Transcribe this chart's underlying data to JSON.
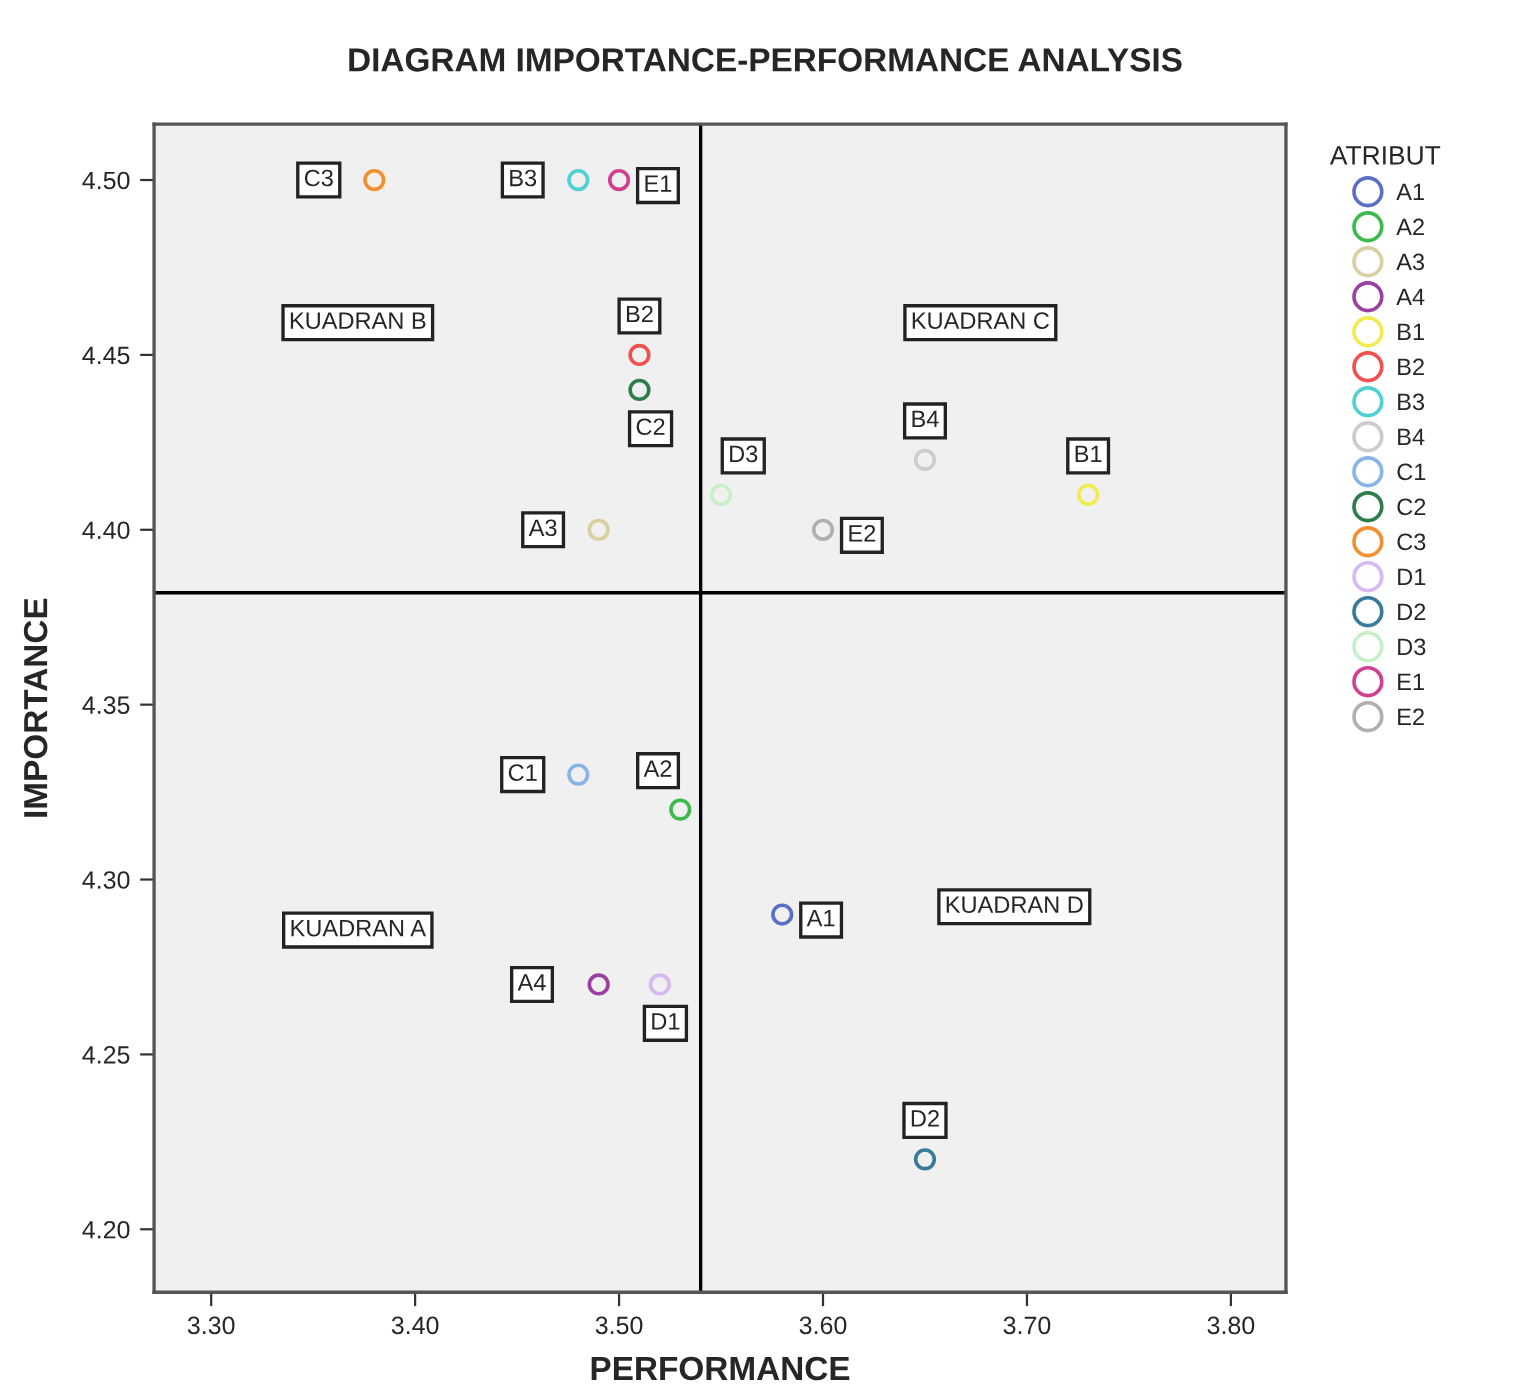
{
  "chart_data": {
    "type": "scatter",
    "title": "DIAGRAM IMPORTANCE-PERFORMANCE ANALYSIS",
    "xlabel": "PERFORMANCE",
    "ylabel": "IMPORTANCE",
    "legend_title": "ATRIBUT",
    "legend": "right",
    "marker": "circle",
    "grid": false,
    "xlim": [
      3.272,
      3.827
    ],
    "xticks": [
      {
        "value": 3.3,
        "label": "3.30"
      },
      {
        "value": 3.4,
        "label": "3.40"
      },
      {
        "value": 3.5,
        "label": "3.50"
      },
      {
        "value": 3.6,
        "label": "3.60"
      },
      {
        "value": 3.7,
        "label": "3.70"
      },
      {
        "value": 3.8,
        "label": "3.80"
      }
    ],
    "ylim": [
      4.182,
      4.516
    ],
    "yticks": [
      {
        "value": 4.2,
        "label": "4.20"
      },
      {
        "value": 4.25,
        "label": "4.25"
      },
      {
        "value": 4.3,
        "label": "4.30"
      },
      {
        "value": 4.35,
        "label": "4.35"
      },
      {
        "value": 4.4,
        "label": "4.40"
      },
      {
        "value": 4.45,
        "label": "4.45"
      },
      {
        "value": 4.5,
        "label": "4.50"
      }
    ],
    "ref_lines": [
      {
        "axis": "x",
        "value": 3.54,
        "color": "#000000"
      },
      {
        "axis": "y",
        "value": 4.382,
        "color": "#000000"
      }
    ],
    "series": [
      {
        "name": "A1",
        "color": "#5b6fc4",
        "x": [
          3.58
        ],
        "values": [
          4.29
        ]
      },
      {
        "name": "A2",
        "color": "#3cba4c",
        "x": [
          3.53
        ],
        "values": [
          4.32
        ]
      },
      {
        "name": "A3",
        "color": "#d8d0a0",
        "x": [
          3.49
        ],
        "values": [
          4.4
        ]
      },
      {
        "name": "A4",
        "color": "#9b3fa0",
        "x": [
          3.49
        ],
        "values": [
          4.27
        ]
      },
      {
        "name": "B1",
        "color": "#f0ec50",
        "x": [
          3.73
        ],
        "values": [
          4.41
        ]
      },
      {
        "name": "B2",
        "color": "#f05050",
        "x": [
          3.51
        ],
        "values": [
          4.45
        ]
      },
      {
        "name": "B3",
        "color": "#50d0d0",
        "x": [
          3.48
        ],
        "values": [
          4.5
        ]
      },
      {
        "name": "B4",
        "color": "#cccccc",
        "x": [
          3.65
        ],
        "values": [
          4.42
        ]
      },
      {
        "name": "C1",
        "color": "#88b4e8",
        "x": [
          3.48
        ],
        "values": [
          4.33
        ]
      },
      {
        "name": "C2",
        "color": "#2e7d4a",
        "x": [
          3.51
        ],
        "values": [
          4.44
        ]
      },
      {
        "name": "C3",
        "color": "#f09030",
        "x": [
          3.38
        ],
        "values": [
          4.5
        ]
      },
      {
        "name": "D1",
        "color": "#d8b8f0",
        "x": [
          3.52
        ],
        "values": [
          4.27
        ]
      },
      {
        "name": "D2",
        "color": "#3a7a99",
        "x": [
          3.65
        ],
        "values": [
          4.22
        ]
      },
      {
        "name": "D3",
        "color": "#c8f0c8",
        "x": [
          3.55
        ],
        "values": [
          4.41
        ]
      },
      {
        "name": "E1",
        "color": "#d04090",
        "x": [
          3.5
        ],
        "values": [
          4.5
        ]
      },
      {
        "name": "E2",
        "color": "#b0b0b0",
        "x": [
          3.6
        ],
        "values": [
          4.4
        ]
      }
    ],
    "annotations": [
      {
        "text": "A1",
        "x": 3.58,
        "y": 4.29
      },
      {
        "text": "A2",
        "x": 3.53,
        "y": 4.32
      },
      {
        "text": "A3",
        "x": 3.49,
        "y": 4.4
      },
      {
        "text": "A4",
        "x": 3.49,
        "y": 4.27
      },
      {
        "text": "B1",
        "x": 3.73,
        "y": 4.41
      },
      {
        "text": "B2",
        "x": 3.51,
        "y": 4.45
      },
      {
        "text": "B3",
        "x": 3.48,
        "y": 4.5
      },
      {
        "text": "B4",
        "x": 3.65,
        "y": 4.42
      },
      {
        "text": "C1",
        "x": 3.48,
        "y": 4.33
      },
      {
        "text": "C2",
        "x": 3.51,
        "y": 4.44
      },
      {
        "text": "C3",
        "x": 3.38,
        "y": 4.5
      },
      {
        "text": "D1",
        "x": 3.52,
        "y": 4.27
      },
      {
        "text": "D2",
        "x": 3.65,
        "y": 4.22
      },
      {
        "text": "D3",
        "x": 3.55,
        "y": 4.41
      },
      {
        "text": "E1",
        "x": 3.5,
        "y": 4.5
      },
      {
        "text": "E2",
        "x": 3.6,
        "y": 4.4
      },
      "KUADRAN A",
      "KUADRAN B",
      "KUADRAN C",
      "KUADRAN D"
    ]
  }
}
